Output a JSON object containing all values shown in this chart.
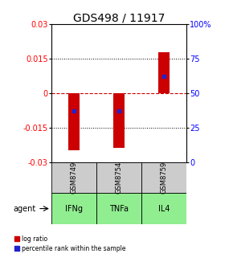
{
  "title": "GDS498 / 11917",
  "samples": [
    "GSM8749",
    "GSM8754",
    "GSM8759"
  ],
  "agents": [
    "IFNg",
    "TNFa",
    "IL4"
  ],
  "log_ratios": [
    -0.025,
    -0.024,
    0.018
  ],
  "percentile_ranks": [
    0.37,
    0.37,
    0.62
  ],
  "ylim": [
    -0.03,
    0.03
  ],
  "yticks_left": [
    -0.03,
    -0.015,
    0,
    0.015,
    0.03
  ],
  "yticks_right": [
    0,
    25,
    50,
    75,
    100
  ],
  "bar_color": "#CC0000",
  "pct_color": "#2222CC",
  "sample_bg": "#cccccc",
  "agent_bg_color": "#90EE90",
  "zero_line_color": "#CC0000",
  "title_fontsize": 10,
  "tick_fontsize": 7,
  "label_fontsize": 7,
  "bar_width": 0.25
}
